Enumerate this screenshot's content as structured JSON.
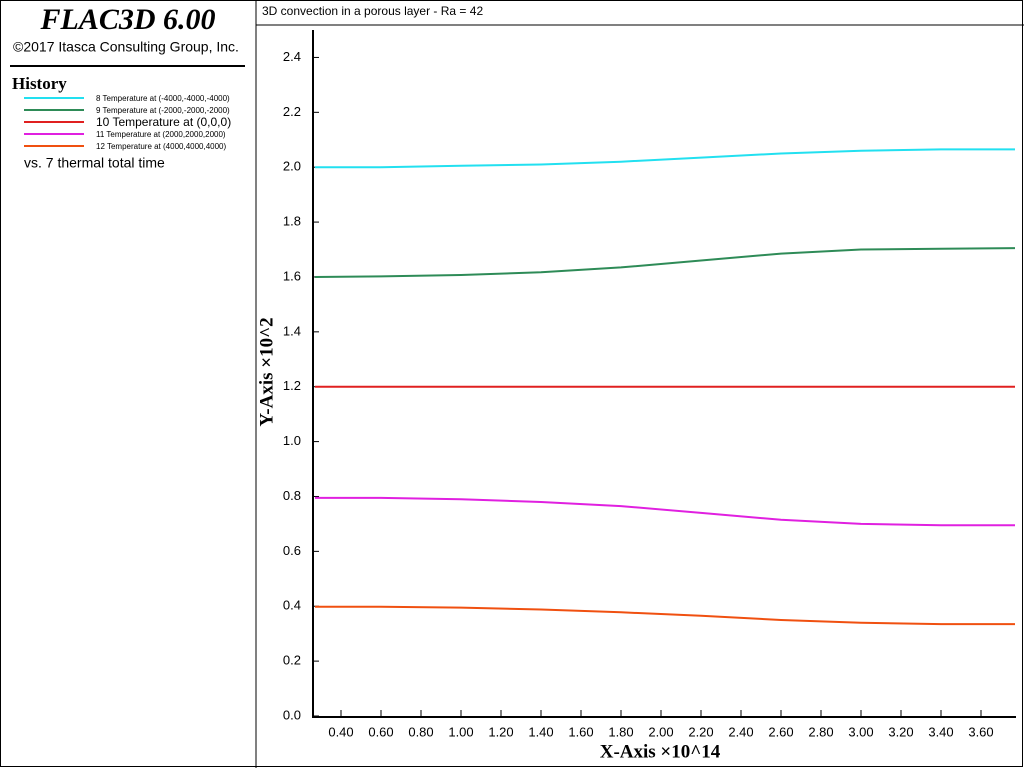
{
  "app": {
    "title": "FLAC3D 6.00",
    "copyright": "©2017 Itasca Consulting Group, Inc."
  },
  "chart_data": {
    "type": "line",
    "title": "3D convection in a porous layer - Ra = 42",
    "legend_title": "History",
    "legend_note": "vs. 7 thermal total time",
    "x_label": "X-Axis ×10^14",
    "y_label": "Y-Axis ×10^2",
    "x": [
      0.27,
      0.6,
      1.0,
      1.4,
      1.8,
      2.2,
      2.6,
      3.0,
      3.4,
      3.77
    ],
    "series": [
      {
        "name": "8 Temperature at (-4000,-4000,-4000)",
        "color": "#22e0f0",
        "values": [
          2.0,
          2.0,
          2.005,
          2.01,
          2.02,
          2.035,
          2.05,
          2.06,
          2.065,
          2.065
        ]
      },
      {
        "name": "9 Temperature at (-2000,-2000,-2000)",
        "color": "#2e8b57",
        "values": [
          1.6,
          1.602,
          1.607,
          1.617,
          1.635,
          1.66,
          1.685,
          1.7,
          1.703,
          1.705
        ]
      },
      {
        "name": "10 Temperature at (0,0,0)",
        "color": "#e02020",
        "values": [
          1.2,
          1.2,
          1.2,
          1.2,
          1.2,
          1.2,
          1.2,
          1.2,
          1.2,
          1.2
        ]
      },
      {
        "name": "11 Temperature at (2000,2000,2000)",
        "color": "#e020e0",
        "values": [
          0.795,
          0.795,
          0.79,
          0.78,
          0.765,
          0.74,
          0.715,
          0.7,
          0.695,
          0.695
        ]
      },
      {
        "name": "12 Temperature at (4000,4000,4000)",
        "color": "#f05010",
        "values": [
          0.398,
          0.398,
          0.395,
          0.388,
          0.378,
          0.365,
          0.35,
          0.34,
          0.335,
          0.335
        ]
      }
    ],
    "xlim": [
      0.26,
      3.77
    ],
    "ylim": [
      0,
      2.5
    ],
    "xticks": [
      {
        "value": 0.4,
        "label": "0.40"
      },
      {
        "value": 0.6,
        "label": "0.60"
      },
      {
        "value": 0.8,
        "label": "0.80"
      },
      {
        "value": 1.0,
        "label": "1.00"
      },
      {
        "value": 1.2,
        "label": "1.20"
      },
      {
        "value": 1.4,
        "label": "1.40"
      },
      {
        "value": 1.6,
        "label": "1.60"
      },
      {
        "value": 1.8,
        "label": "1.80"
      },
      {
        "value": 2.0,
        "label": "2.00"
      },
      {
        "value": 2.2,
        "label": "2.20"
      },
      {
        "value": 2.4,
        "label": "2.40"
      },
      {
        "value": 2.6,
        "label": "2.60"
      },
      {
        "value": 2.8,
        "label": "2.80"
      },
      {
        "value": 3.0,
        "label": "3.00"
      },
      {
        "value": 3.2,
        "label": "3.20"
      },
      {
        "value": 3.4,
        "label": "3.40"
      },
      {
        "value": 3.6,
        "label": "3.60"
      }
    ],
    "yticks": [
      {
        "value": 0,
        "label": "0.0"
      },
      0.2,
      0.4,
      0.6,
      0.8,
      {
        "value": 1,
        "label": "1.0"
      },
      1.2,
      1.4,
      1.6,
      1.8,
      {
        "value": 2,
        "label": "2.0"
      },
      2.2,
      2.4
    ]
  }
}
